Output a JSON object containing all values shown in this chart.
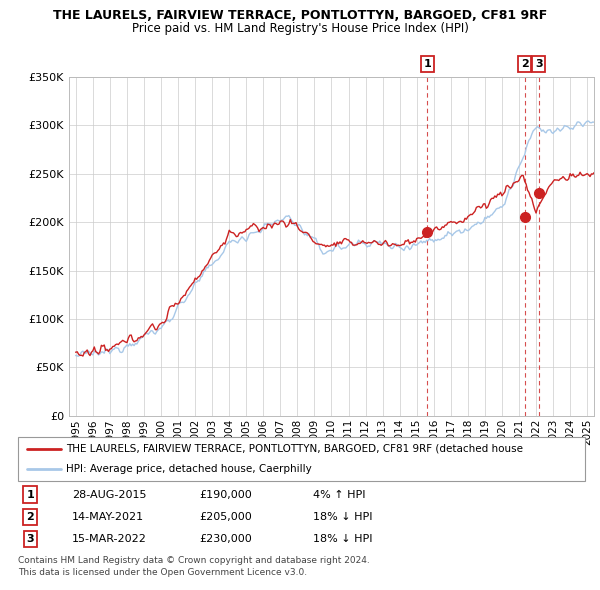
{
  "title": "THE LAURELS, FAIRVIEW TERRACE, PONTLOTTYN, BARGOED, CF81 9RF",
  "subtitle": "Price paid vs. HM Land Registry's House Price Index (HPI)",
  "legend_line1": "THE LAURELS, FAIRVIEW TERRACE, PONTLOTTYN, BARGOED, CF81 9RF (detached house",
  "legend_line2": "HPI: Average price, detached house, Caerphilly",
  "footnote1": "Contains HM Land Registry data © Crown copyright and database right 2024.",
  "footnote2": "This data is licensed under the Open Government Licence v3.0.",
  "transactions": [
    {
      "num": 1,
      "date": "28-AUG-2015",
      "price": "£190,000",
      "hpi": "4% ↑ HPI",
      "year": 2015.625
    },
    {
      "num": 2,
      "date": "14-MAY-2021",
      "price": "£205,000",
      "hpi": "18% ↓ HPI",
      "year": 2021.333
    },
    {
      "num": 3,
      "date": "15-MAR-2022",
      "price": "£230,000",
      "hpi": "18% ↓ HPI",
      "year": 2022.167
    }
  ],
  "trans_prices": [
    190000,
    205000,
    230000
  ],
  "ylim": [
    0,
    350000
  ],
  "yticks": [
    0,
    50000,
    100000,
    150000,
    200000,
    250000,
    300000,
    350000
  ],
  "ytick_labels": [
    "£0",
    "£50K",
    "£100K",
    "£150K",
    "£200K",
    "£250K",
    "£300K",
    "£350K"
  ],
  "hpi_color": "#a8c8e8",
  "price_color": "#cc2222",
  "marker_color": "#cc2222",
  "vline_color": "#cc2222",
  "grid_color": "#cccccc",
  "bg_color": "#ffffff"
}
